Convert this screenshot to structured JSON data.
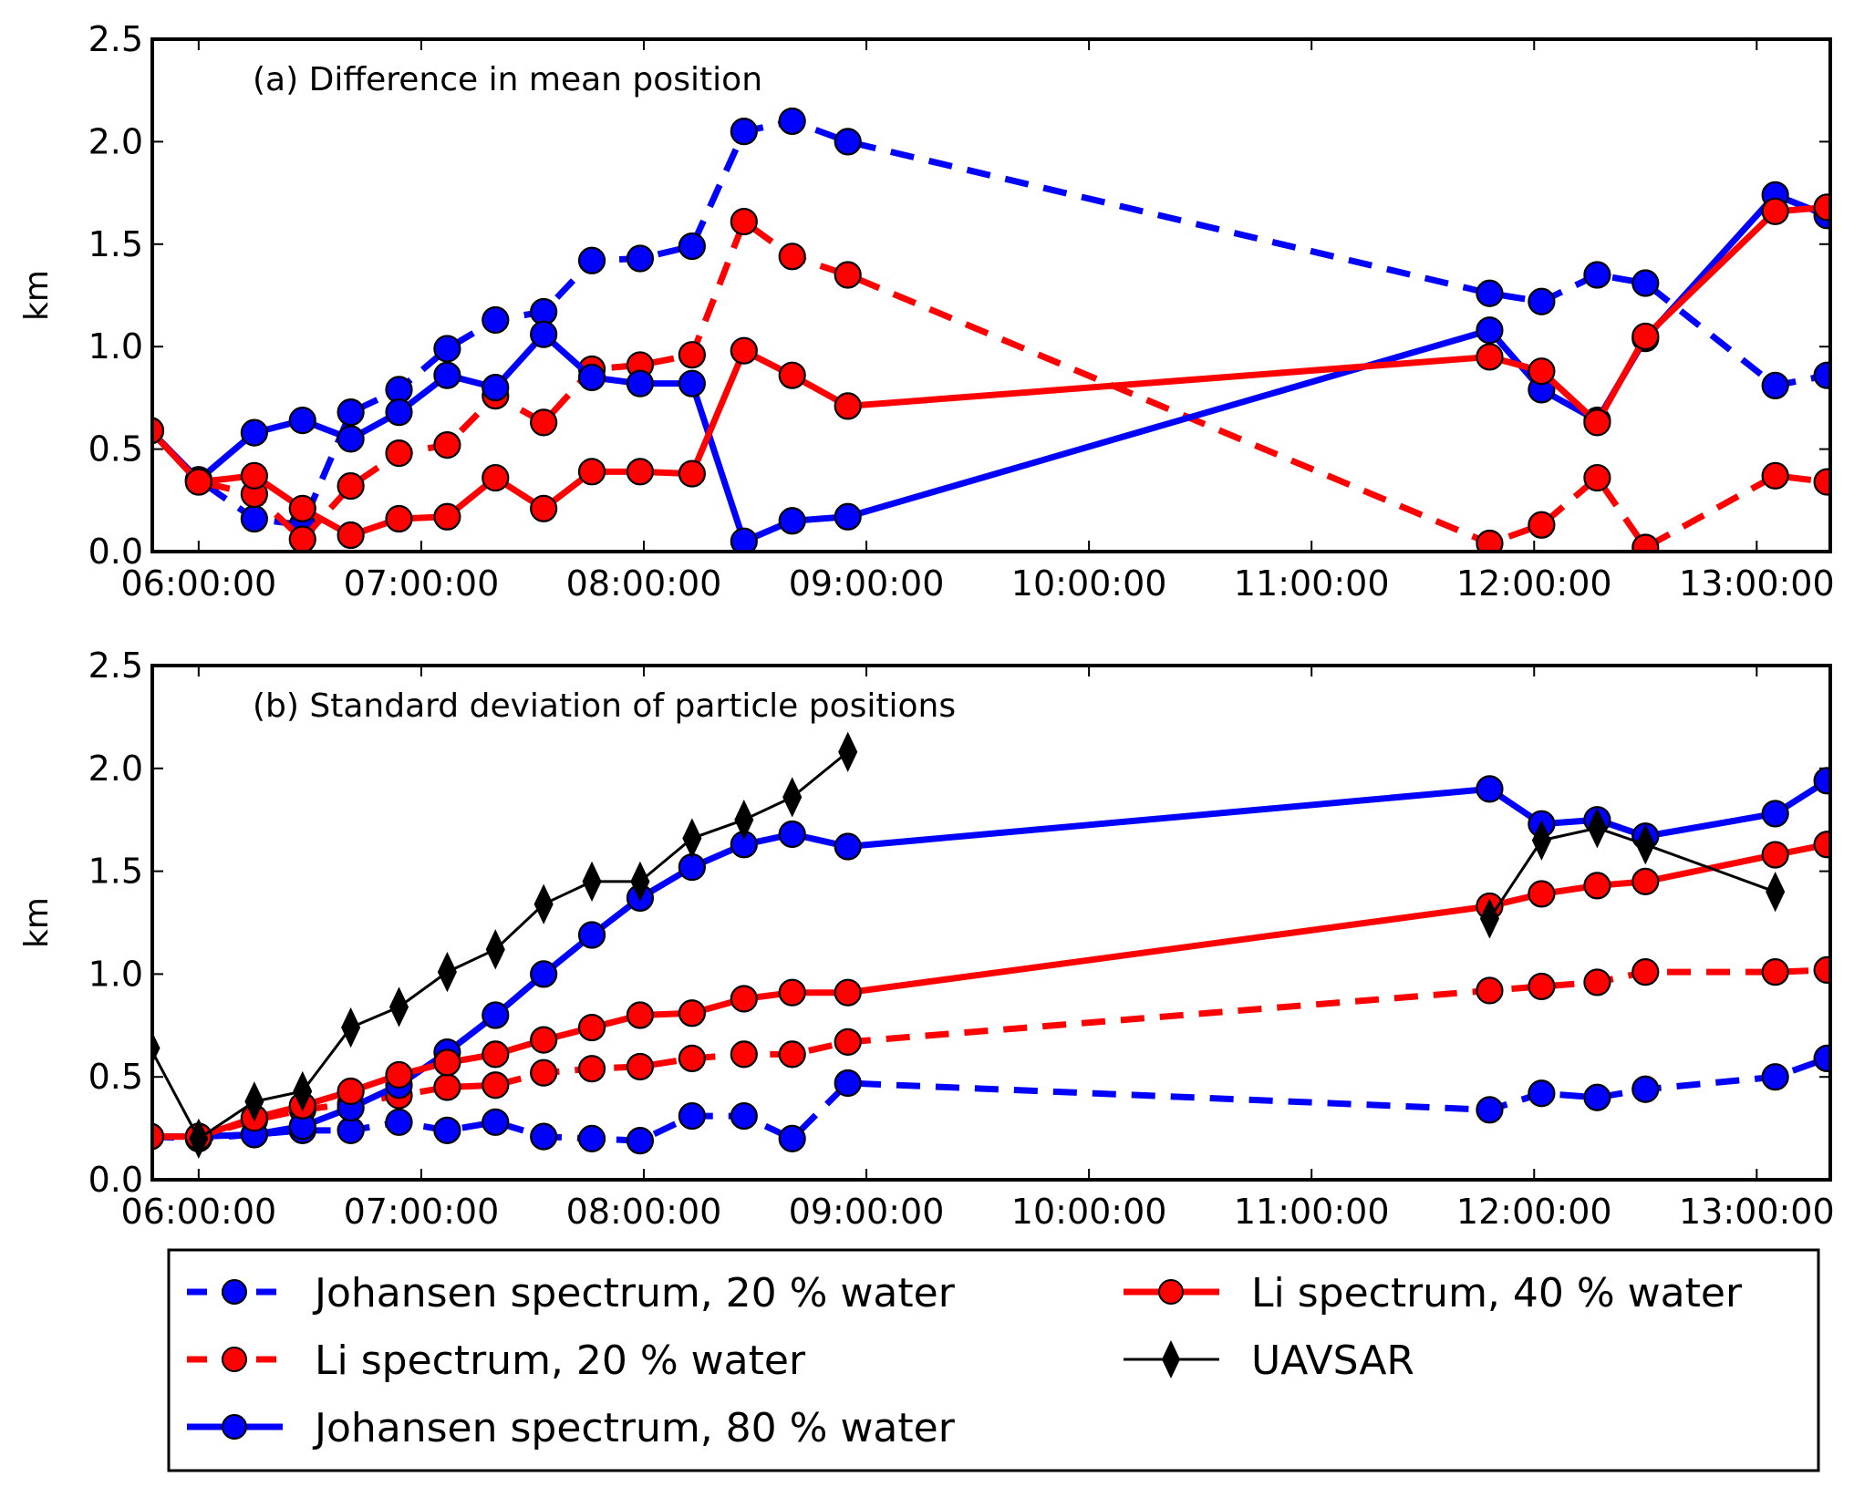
{
  "chart_data": {
    "type": "line",
    "x_format": "HH:MM:SS",
    "x_ticks": [
      "06:00:00",
      "07:00:00",
      "08:00:00",
      "09:00:00",
      "10:00:00",
      "11:00:00",
      "12:00:00",
      "13:00:00"
    ],
    "xlim": [
      "05:47:30",
      "13:19:50"
    ],
    "x": [
      "05:47",
      "06:00",
      "06:15",
      "06:28",
      "06:41",
      "06:54",
      "07:07",
      "07:20",
      "07:33",
      "07:46",
      "07:59",
      "08:13",
      "08:27",
      "08:40",
      "08:55",
      "11:48",
      "12:02",
      "12:17",
      "12:30",
      "13:05",
      "13:19"
    ],
    "legend": {
      "placement": "below-plots",
      "columns": 2,
      "entries": [
        {
          "key": "johansen20",
          "label": "Johansen spectrum, 20 % water"
        },
        {
          "key": "li40",
          "label": "Li spectrum, 40 % water"
        },
        {
          "key": "li20",
          "label": "Li spectrum, 20 % water"
        },
        {
          "key": "uavsar",
          "label": "UAVSAR"
        },
        {
          "key": "johansen80",
          "label": "Johansen spectrum, 80 % water"
        }
      ]
    },
    "series_styles": {
      "johansen20": {
        "color": "#0000ff",
        "dashed": true,
        "marker": "circle"
      },
      "li20": {
        "color": "#ff0000",
        "dashed": true,
        "marker": "circle"
      },
      "johansen80": {
        "color": "#0000ff",
        "dashed": false,
        "marker": "circle"
      },
      "li40": {
        "color": "#ff0000",
        "dashed": false,
        "marker": "circle"
      },
      "uavsar": {
        "color": "#000000",
        "dashed": false,
        "marker": "diamond",
        "thin": true
      }
    },
    "panels": [
      {
        "id": "a",
        "title": "(a) Difference in mean position",
        "ylabel": "km",
        "ylim": [
          0,
          2.5
        ],
        "y_ticks": [
          "0.0",
          "0.5",
          "1.0",
          "1.5",
          "2.0",
          "2.5"
        ],
        "grid": false,
        "series": [
          {
            "key": "johansen20",
            "name": "Johansen spectrum, 20 % water",
            "values": [
              0.59,
              0.35,
              0.16,
              0.13,
              0.68,
              0.79,
              0.99,
              1.13,
              1.17,
              1.42,
              1.43,
              1.49,
              2.05,
              2.1,
              2.0,
              1.26,
              1.22,
              1.35,
              1.31,
              0.81,
              0.86
            ]
          },
          {
            "key": "li20",
            "name": "Li spectrum, 20 % water",
            "values": [
              0.59,
              0.34,
              0.28,
              0.06,
              0.32,
              0.48,
              0.52,
              0.76,
              0.63,
              0.89,
              0.91,
              0.96,
              1.61,
              1.44,
              1.35,
              0.04,
              0.13,
              0.36,
              0.02,
              0.37,
              0.34
            ]
          },
          {
            "key": "johansen80",
            "name": "Johansen spectrum, 80 % water",
            "values": [
              0.59,
              0.35,
              0.58,
              0.64,
              0.55,
              0.68,
              0.86,
              0.8,
              1.06,
              0.85,
              0.82,
              0.82,
              0.05,
              0.15,
              0.17,
              1.08,
              0.79,
              0.64,
              1.04,
              1.74,
              1.64
            ]
          },
          {
            "key": "li40",
            "name": "Li spectrum, 40 % water",
            "values": [
              0.59,
              0.34,
              0.37,
              0.21,
              0.08,
              0.16,
              0.17,
              0.36,
              0.21,
              0.39,
              0.39,
              0.38,
              0.98,
              0.86,
              0.71,
              0.95,
              0.88,
              0.63,
              1.05,
              1.66,
              1.68
            ]
          }
        ]
      },
      {
        "id": "b",
        "title": "(b) Standard deviation of particle positions",
        "ylabel": "km",
        "ylim": [
          0,
          2.5
        ],
        "y_ticks": [
          "0.0",
          "0.5",
          "1.0",
          "1.5",
          "2.0",
          "2.5"
        ],
        "grid": false,
        "series": [
          {
            "key": "johansen20",
            "name": "Johansen spectrum, 20 % water",
            "values": [
              0.21,
              0.2,
              0.22,
              0.24,
              0.24,
              0.28,
              0.24,
              0.28,
              0.21,
              0.2,
              0.19,
              0.31,
              0.31,
              0.2,
              0.47,
              0.34,
              0.42,
              0.4,
              0.44,
              0.5,
              0.59
            ]
          },
          {
            "key": "li20",
            "name": "Li spectrum, 20 % water",
            "values": [
              0.21,
              0.21,
              0.29,
              0.34,
              0.37,
              0.41,
              0.45,
              0.46,
              0.52,
              0.54,
              0.55,
              0.59,
              0.61,
              0.61,
              0.67,
              0.92,
              0.94,
              0.96,
              1.01,
              1.01,
              1.02
            ]
          },
          {
            "key": "johansen80",
            "name": "Johansen spectrum, 80 % water",
            "values": [
              0.21,
              0.21,
              0.22,
              0.26,
              0.35,
              0.46,
              0.62,
              0.8,
              1.0,
              1.19,
              1.37,
              1.52,
              1.63,
              1.68,
              1.62,
              1.9,
              1.73,
              1.75,
              1.67,
              1.78,
              1.94
            ]
          },
          {
            "key": "li40",
            "name": "Li spectrum, 40 % water",
            "values": [
              0.21,
              0.21,
              0.3,
              0.36,
              0.43,
              0.51,
              0.57,
              0.61,
              0.68,
              0.74,
              0.8,
              0.81,
              0.88,
              0.91,
              0.91,
              1.33,
              1.39,
              1.43,
              1.45,
              1.58,
              1.63
            ]
          },
          {
            "key": "uavsar",
            "name": "UAVSAR",
            "values": [
              0.64,
              0.2,
              0.38,
              0.43,
              0.74,
              0.84,
              1.01,
              1.12,
              1.34,
              1.45,
              1.45,
              1.66,
              1.75,
              1.86,
              2.08,
              1.27,
              1.65,
              1.71,
              1.63,
              1.4,
              null
            ],
            "segment_break_after_index": 14
          }
        ]
      }
    ]
  }
}
